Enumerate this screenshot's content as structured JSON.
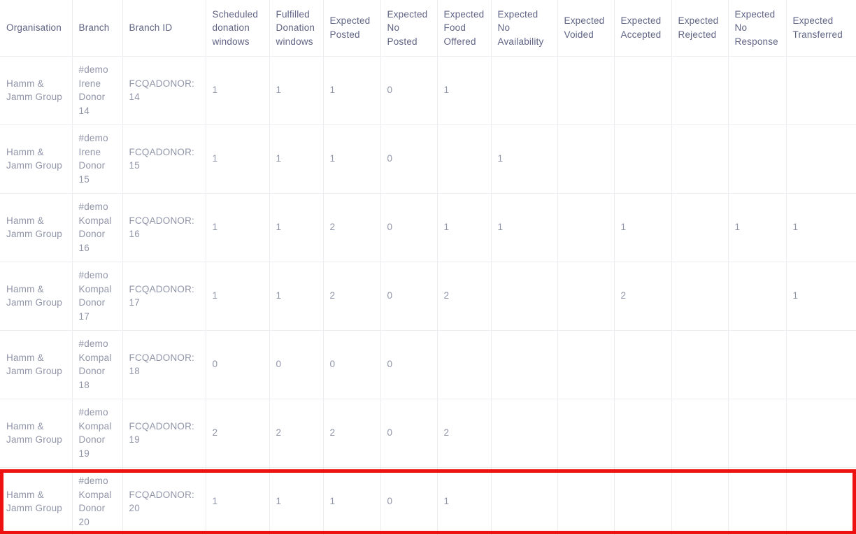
{
  "table": {
    "highlight_color": "#ee1111",
    "columns": [
      {
        "key": "organisation",
        "label": "Organisation"
      },
      {
        "key": "branch",
        "label": "Branch"
      },
      {
        "key": "branch_id",
        "label": "Branch ID"
      },
      {
        "key": "scheduled_windows",
        "label": "Scheduled donation windows"
      },
      {
        "key": "fulfilled_windows",
        "label": "Fulfilled Donation windows"
      },
      {
        "key": "expected_posted",
        "label": "Expected Posted"
      },
      {
        "key": "expected_no_posted",
        "label": "Expected No Posted"
      },
      {
        "key": "expected_food_offered",
        "label": "Expected Food Offered"
      },
      {
        "key": "expected_no_availability",
        "label": "Expected No Availability"
      },
      {
        "key": "expected_voided",
        "label": "Expected Voided"
      },
      {
        "key": "expected_accepted",
        "label": "Expected Accepted"
      },
      {
        "key": "expected_rejected",
        "label": "Expected Rejected"
      },
      {
        "key": "expected_no_response",
        "label": "Expected No Response"
      },
      {
        "key": "expected_transferred",
        "label": "Expected Transferred"
      }
    ],
    "rows": [
      {
        "organisation": "Hamm & Jamm Group",
        "branch": "#demo Irene Donor 14",
        "branch_id": "FCQADONOR:14",
        "scheduled_windows": "1",
        "fulfilled_windows": "1",
        "expected_posted": "1",
        "expected_no_posted": "0",
        "expected_food_offered": "1",
        "expected_no_availability": "",
        "expected_voided": "",
        "expected_accepted": "",
        "expected_rejected": "",
        "expected_no_response": "",
        "expected_transferred": "",
        "highlighted": false
      },
      {
        "organisation": "Hamm & Jamm Group",
        "branch": "#demo Irene Donor 15",
        "branch_id": "FCQADONOR:15",
        "scheduled_windows": "1",
        "fulfilled_windows": "1",
        "expected_posted": "1",
        "expected_no_posted": "0",
        "expected_food_offered": "",
        "expected_no_availability": "1",
        "expected_voided": "",
        "expected_accepted": "",
        "expected_rejected": "",
        "expected_no_response": "",
        "expected_transferred": "",
        "highlighted": false
      },
      {
        "organisation": "Hamm & Jamm Group",
        "branch": "#demo Kompal Donor 16",
        "branch_id": "FCQADONOR:16",
        "scheduled_windows": "1",
        "fulfilled_windows": "1",
        "expected_posted": "2",
        "expected_no_posted": "0",
        "expected_food_offered": "1",
        "expected_no_availability": "1",
        "expected_voided": "",
        "expected_accepted": "1",
        "expected_rejected": "",
        "expected_no_response": "1",
        "expected_transferred": "1",
        "highlighted": false
      },
      {
        "organisation": "Hamm & Jamm Group",
        "branch": "#demo Kompal Donor 17",
        "branch_id": "FCQADONOR:17",
        "scheduled_windows": "1",
        "fulfilled_windows": "1",
        "expected_posted": "2",
        "expected_no_posted": "0",
        "expected_food_offered": "2",
        "expected_no_availability": "",
        "expected_voided": "",
        "expected_accepted": "2",
        "expected_rejected": "",
        "expected_no_response": "",
        "expected_transferred": "1",
        "highlighted": false
      },
      {
        "organisation": "Hamm & Jamm Group",
        "branch": "#demo Kompal Donor 18",
        "branch_id": "FCQADONOR:18",
        "scheduled_windows": "0",
        "fulfilled_windows": "0",
        "expected_posted": "0",
        "expected_no_posted": "0",
        "expected_food_offered": "",
        "expected_no_availability": "",
        "expected_voided": "",
        "expected_accepted": "",
        "expected_rejected": "",
        "expected_no_response": "",
        "expected_transferred": "",
        "highlighted": false
      },
      {
        "organisation": "Hamm & Jamm Group",
        "branch": "#demo Kompal Donor 19",
        "branch_id": "FCQADONOR:19",
        "scheduled_windows": "2",
        "fulfilled_windows": "2",
        "expected_posted": "2",
        "expected_no_posted": "0",
        "expected_food_offered": "2",
        "expected_no_availability": "",
        "expected_voided": "",
        "expected_accepted": "",
        "expected_rejected": "",
        "expected_no_response": "",
        "expected_transferred": "",
        "highlighted": false
      },
      {
        "organisation": "Hamm & Jamm Group",
        "branch": "#demo Kompal Donor 20",
        "branch_id": "FCQADONOR:20",
        "scheduled_windows": "1",
        "fulfilled_windows": "1",
        "expected_posted": "1",
        "expected_no_posted": "0",
        "expected_food_offered": "1",
        "expected_no_availability": "",
        "expected_voided": "",
        "expected_accepted": "",
        "expected_rejected": "",
        "expected_no_response": "",
        "expected_transferred": "",
        "highlighted": true
      }
    ]
  }
}
